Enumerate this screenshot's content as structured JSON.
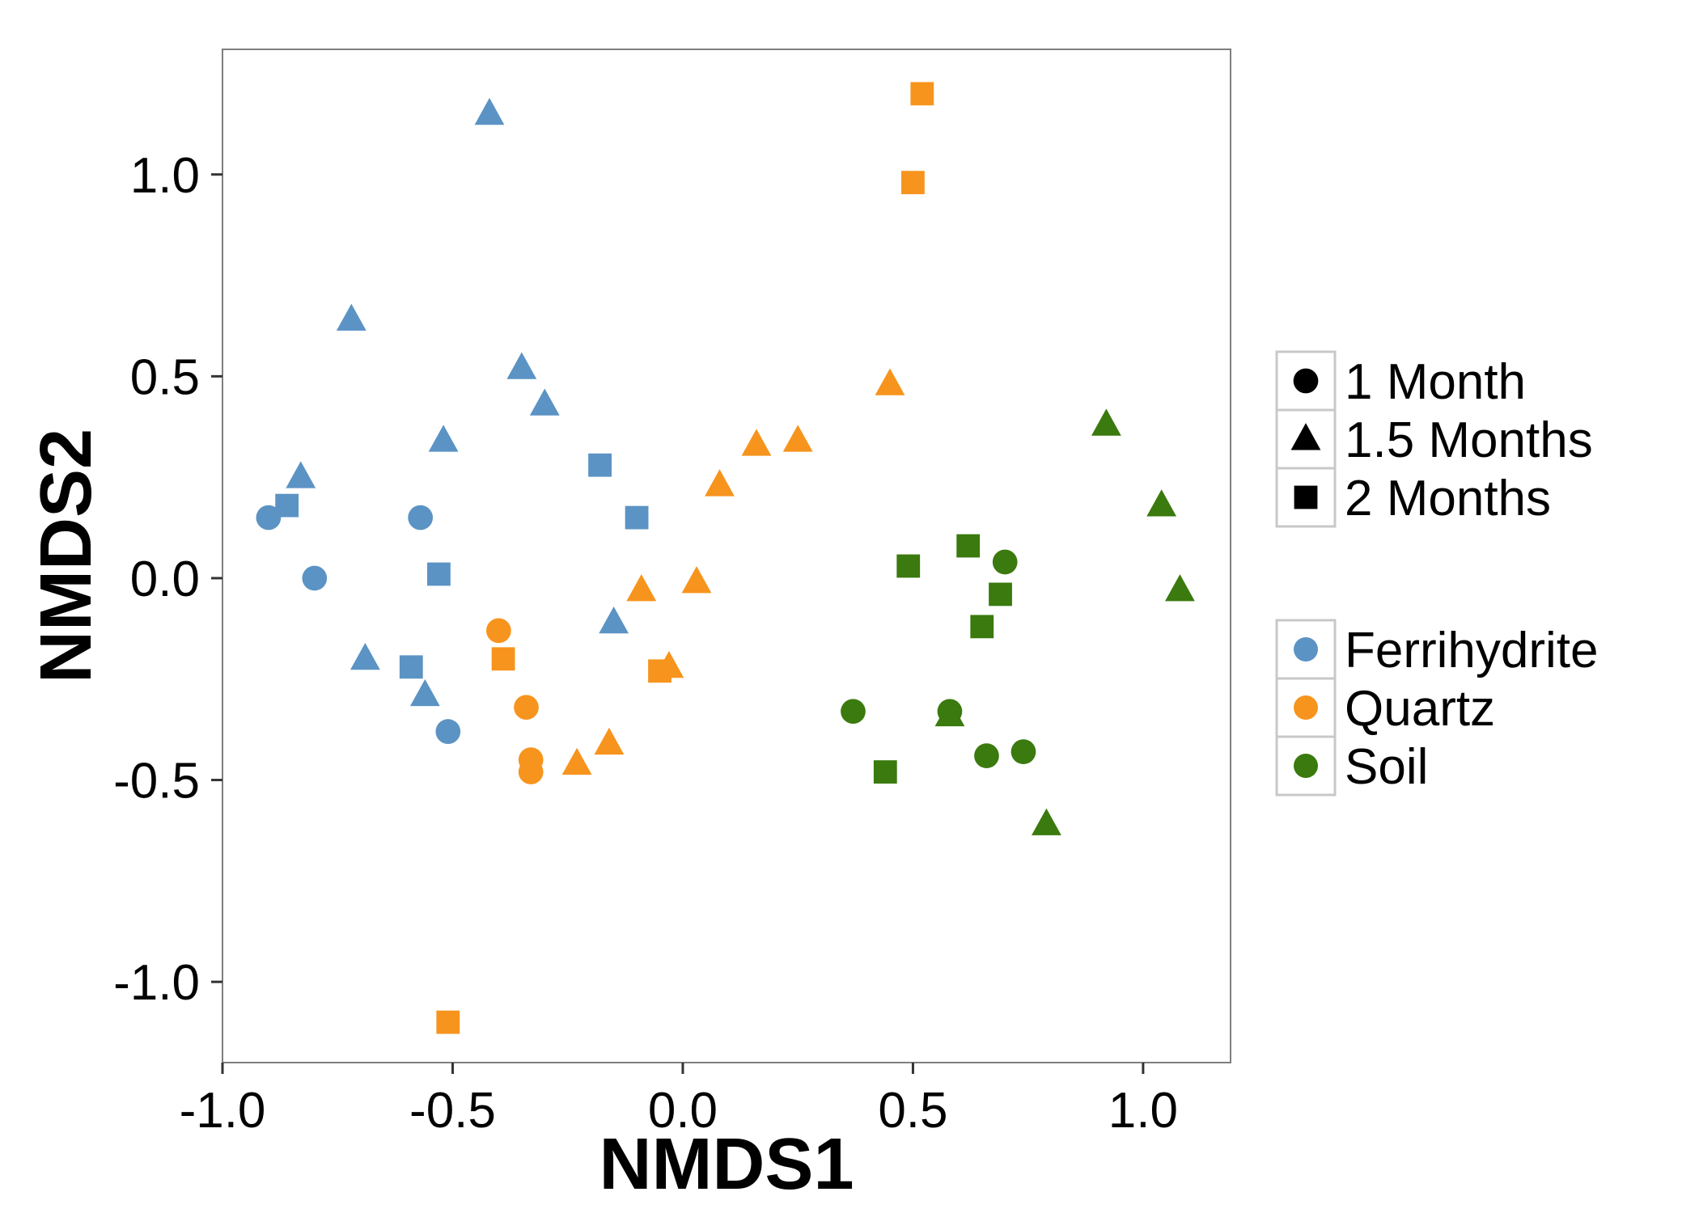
{
  "chart_data": {
    "type": "scatter",
    "xlabel": "NMDS1",
    "ylabel": "NMDS2",
    "xlim": [
      -1.0,
      1.19
    ],
    "ylim": [
      -1.2,
      1.31
    ],
    "xticks": [
      -1.0,
      -0.5,
      0.0,
      0.5,
      1.0
    ],
    "xtick_labels": [
      "-1.0",
      "-0.5",
      "0.0",
      "0.5",
      "1.0"
    ],
    "yticks": [
      -1.0,
      -0.5,
      0.0,
      0.5,
      1.0
    ],
    "ytick_labels": [
      "-1.0",
      "-0.5",
      "0.0",
      "0.5",
      "1.0"
    ],
    "grid": false,
    "legend_position": "right",
    "shape_legend": [
      {
        "label": "1 Month",
        "shape": "circle"
      },
      {
        "label": "1.5 Months",
        "shape": "triangle"
      },
      {
        "label": "2 Months",
        "shape": "square"
      }
    ],
    "color_legend": [
      {
        "label": "Ferrihydrite",
        "color": "#5b93c4"
      },
      {
        "label": "Quartz",
        "color": "#f7941d"
      },
      {
        "label": "Soil",
        "color": "#3a7a0e"
      }
    ],
    "series": [
      {
        "name": "Ferrihydrite",
        "color": "#5b93c4",
        "points": [
          {
            "x": -0.9,
            "y": 0.15,
            "shape": "circle"
          },
          {
            "x": -0.8,
            "y": 0.0,
            "shape": "circle"
          },
          {
            "x": -0.57,
            "y": 0.15,
            "shape": "circle"
          },
          {
            "x": -0.51,
            "y": -0.38,
            "shape": "circle"
          },
          {
            "x": -0.42,
            "y": 1.15,
            "shape": "triangle"
          },
          {
            "x": -0.72,
            "y": 0.64,
            "shape": "triangle"
          },
          {
            "x": -0.35,
            "y": 0.52,
            "shape": "triangle"
          },
          {
            "x": -0.3,
            "y": 0.43,
            "shape": "triangle"
          },
          {
            "x": -0.52,
            "y": 0.34,
            "shape": "triangle"
          },
          {
            "x": -0.83,
            "y": 0.25,
            "shape": "triangle"
          },
          {
            "x": -0.15,
            "y": -0.11,
            "shape": "triangle"
          },
          {
            "x": -0.69,
            "y": -0.2,
            "shape": "triangle"
          },
          {
            "x": -0.56,
            "y": -0.29,
            "shape": "triangle"
          },
          {
            "x": -0.86,
            "y": 0.18,
            "shape": "square"
          },
          {
            "x": -0.18,
            "y": 0.28,
            "shape": "square"
          },
          {
            "x": -0.1,
            "y": 0.15,
            "shape": "square"
          },
          {
            "x": -0.53,
            "y": 0.01,
            "shape": "square"
          },
          {
            "x": -0.59,
            "y": -0.22,
            "shape": "square"
          }
        ]
      },
      {
        "name": "Quartz",
        "color": "#f7941d",
        "points": [
          {
            "x": -0.4,
            "y": -0.13,
            "shape": "circle"
          },
          {
            "x": -0.34,
            "y": -0.32,
            "shape": "circle"
          },
          {
            "x": -0.33,
            "y": -0.45,
            "shape": "circle"
          },
          {
            "x": -0.33,
            "y": -0.48,
            "shape": "circle"
          },
          {
            "x": 0.45,
            "y": 0.48,
            "shape": "triangle"
          },
          {
            "x": 0.16,
            "y": 0.33,
            "shape": "triangle"
          },
          {
            "x": 0.25,
            "y": 0.34,
            "shape": "triangle"
          },
          {
            "x": 0.08,
            "y": 0.23,
            "shape": "triangle"
          },
          {
            "x": -0.09,
            "y": -0.03,
            "shape": "triangle"
          },
          {
            "x": 0.03,
            "y": -0.01,
            "shape": "triangle"
          },
          {
            "x": -0.03,
            "y": -0.22,
            "shape": "triangle"
          },
          {
            "x": -0.16,
            "y": -0.41,
            "shape": "triangle"
          },
          {
            "x": -0.23,
            "y": -0.46,
            "shape": "triangle"
          },
          {
            "x": 0.52,
            "y": 1.2,
            "shape": "square"
          },
          {
            "x": 0.5,
            "y": 0.98,
            "shape": "square"
          },
          {
            "x": -0.39,
            "y": -0.2,
            "shape": "square"
          },
          {
            "x": -0.05,
            "y": -0.23,
            "shape": "square"
          },
          {
            "x": -0.51,
            "y": -1.1,
            "shape": "square"
          }
        ]
      },
      {
        "name": "Soil",
        "color": "#3a7a0e",
        "points": [
          {
            "x": 0.7,
            "y": 0.04,
            "shape": "circle"
          },
          {
            "x": 0.37,
            "y": -0.33,
            "shape": "circle"
          },
          {
            "x": 0.58,
            "y": -0.33,
            "shape": "circle"
          },
          {
            "x": 0.66,
            "y": -0.44,
            "shape": "circle"
          },
          {
            "x": 0.74,
            "y": -0.43,
            "shape": "circle"
          },
          {
            "x": 0.92,
            "y": 0.38,
            "shape": "triangle"
          },
          {
            "x": 1.04,
            "y": 0.18,
            "shape": "triangle"
          },
          {
            "x": 1.08,
            "y": -0.03,
            "shape": "triangle"
          },
          {
            "x": 0.58,
            "y": -0.34,
            "shape": "triangle"
          },
          {
            "x": 0.79,
            "y": -0.61,
            "shape": "triangle"
          },
          {
            "x": 0.62,
            "y": 0.08,
            "shape": "square"
          },
          {
            "x": 0.49,
            "y": 0.03,
            "shape": "square"
          },
          {
            "x": 0.69,
            "y": -0.04,
            "shape": "square"
          },
          {
            "x": 0.65,
            "y": -0.12,
            "shape": "square"
          },
          {
            "x": 0.44,
            "y": -0.48,
            "shape": "square"
          }
        ]
      }
    ]
  }
}
